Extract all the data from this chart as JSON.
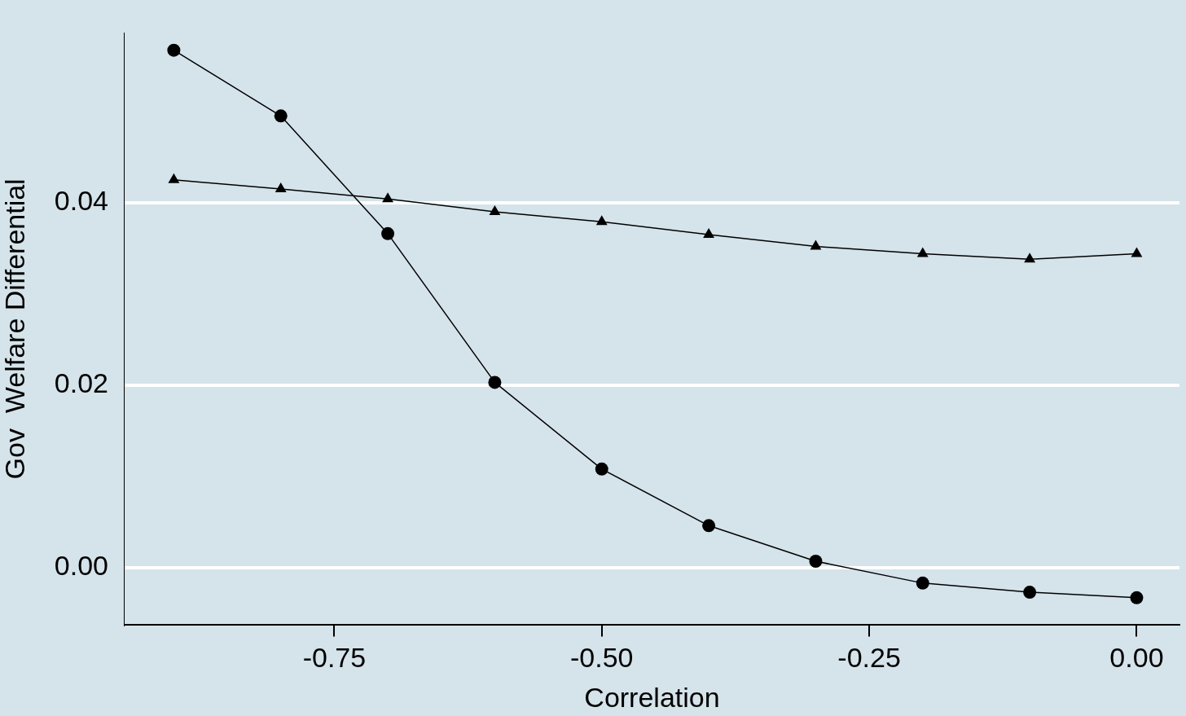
{
  "chart_data": {
    "type": "line",
    "xlabel": "Correlation",
    "ylabel": "Gov  Welfare Differential",
    "x": [
      -0.9,
      -0.8,
      -0.7,
      -0.6,
      -0.5,
      -0.4,
      -0.3,
      -0.2,
      -0.1,
      0.0
    ],
    "series": [
      {
        "color": "#000000",
        "marker": "circle",
        "values": [
          0.0567,
          0.0495,
          0.0366,
          0.0203,
          0.0108,
          0.0046,
          0.0007,
          -0.0017,
          -0.0027,
          -0.0033
        ]
      },
      {
        "color": "#000000",
        "marker": "triangle",
        "values": [
          0.0425,
          0.0415,
          0.0404,
          0.039,
          0.0379,
          0.0365,
          0.0352,
          0.0344,
          0.0338,
          0.0344
        ]
      }
    ],
    "xlim": [
      -0.946,
      0.04
    ],
    "xticks": [
      {
        "value": -0.75,
        "label": "-0.75"
      },
      {
        "value": -0.5,
        "label": "-0.50"
      },
      {
        "value": -0.25,
        "label": "-0.25"
      },
      {
        "value": 0,
        "label": "0.00"
      }
    ],
    "ylim": [
      -0.0063,
      0.0586
    ],
    "yticks": [
      {
        "value": 0,
        "label": "0.00"
      },
      {
        "value": 0.02,
        "label": "0.02"
      },
      {
        "value": 0.04,
        "label": "0.04"
      }
    ],
    "grid": "y",
    "line_style": "solid"
  }
}
